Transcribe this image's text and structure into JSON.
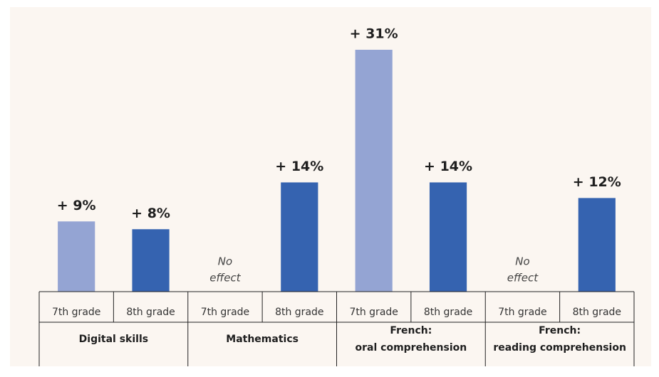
{
  "chart_data": {
    "type": "bar",
    "categories": [
      [
        "Digital skills"
      ],
      [
        "Mathematics"
      ],
      [
        "French:",
        "oral comprehension"
      ],
      [
        "French:",
        "reading comprehension"
      ]
    ],
    "series": [
      {
        "name": "7th grade",
        "color": "#94a4d3",
        "values": [
          9,
          null,
          31,
          null
        ],
        "value_labels": [
          "+ 9%",
          null,
          "+ 31%",
          null
        ]
      },
      {
        "name": "8th grade",
        "color": "#3563b0",
        "values": [
          8,
          14,
          14,
          12
        ],
        "value_labels": [
          "+ 8%",
          "+ 14%",
          "+ 14%",
          "+ 12%"
        ]
      }
    ],
    "null_annotation": [
      "No",
      "effect"
    ],
    "ylim": [
      0,
      32
    ]
  }
}
